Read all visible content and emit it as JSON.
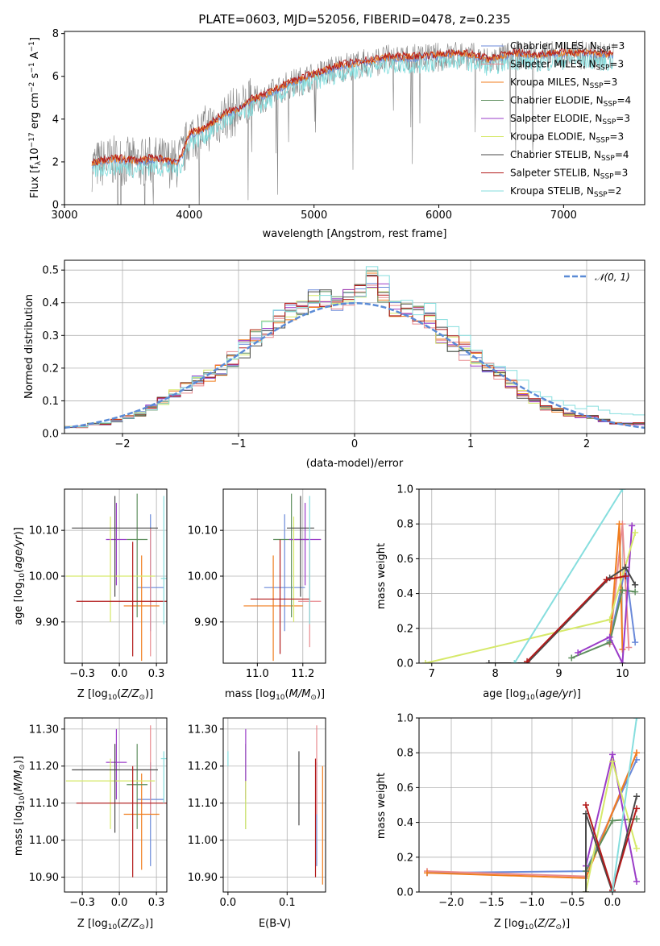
{
  "colors": {
    "chabrier_miles": "#6a89d9",
    "salpeter_miles": "#e88a8f",
    "kroupa_miles": "#f07d1e",
    "chabrier_elodie": "#5e8f5e",
    "salpeter_elodie": "#9a3cc8",
    "kroupa_elodie": "#d6e96a",
    "chabrier_stelib": "#4a4a4a",
    "salpeter_stelib": "#b31b1b",
    "kroupa_stelib": "#86dede",
    "grey_spectrum": "#808080"
  },
  "legend": [
    {
      "key": "chabrier_miles",
      "label": "Chabrier MILES, N",
      "sub": "SSP",
      "tail": "=3"
    },
    {
      "key": "salpeter_miles",
      "label": "Salpeter MILES, N",
      "sub": "SSP",
      "tail": "=3"
    },
    {
      "key": "kroupa_miles",
      "label": "Kroupa MILES, N",
      "sub": "SSP",
      "tail": "=3"
    },
    {
      "key": "chabrier_elodie",
      "label": "Chabrier ELODIE, N",
      "sub": "SSP",
      "tail": "=4"
    },
    {
      "key": "salpeter_elodie",
      "label": "Salpeter ELODIE, N",
      "sub": "SSP",
      "tail": "=3"
    },
    {
      "key": "kroupa_elodie",
      "label": "Kroupa ELODIE, N",
      "sub": "SSP",
      "tail": "=3"
    },
    {
      "key": "chabrier_stelib",
      "label": "Chabrier STELIB, N",
      "sub": "SSP",
      "tail": "=4"
    },
    {
      "key": "salpeter_stelib",
      "label": "Salpeter STELIB, N",
      "sub": "SSP",
      "tail": "=3"
    },
    {
      "key": "kroupa_stelib",
      "label": "Kroupa STELIB, N",
      "sub": "SSP",
      "tail": "=2"
    }
  ],
  "chart_data": [
    {
      "id": "spectrum",
      "type": "line",
      "title": "PLATE=0603, MJD=52056, FIBERID=0478, z=0.235",
      "xlabel": "wavelength [Angstrom, rest frame]",
      "ylabel": "Flux [fλ 10⁻¹⁷ erg cm⁻² s⁻¹ A⁻¹]",
      "xlim": [
        3000,
        7650
      ],
      "ylim": [
        0,
        8.1
      ],
      "xticks": [
        3000,
        4000,
        5000,
        6000,
        7000
      ],
      "yticks": [
        0,
        2,
        4,
        6,
        8
      ],
      "model_curve": {
        "x": [
          3220,
          3300,
          3400,
          3500,
          3600,
          3700,
          3800,
          3900,
          3950,
          4000,
          4100,
          4200,
          4300,
          4400,
          4500,
          4600,
          4700,
          4800,
          4900,
          5000,
          5200,
          5400,
          5600,
          5800,
          6000,
          6200,
          6400,
          6600,
          6800,
          7000,
          7200,
          7400
        ],
        "y": [
          1.8,
          1.95,
          2.05,
          2.0,
          1.95,
          2.05,
          2.0,
          1.9,
          2.3,
          3.2,
          3.4,
          3.8,
          4.2,
          4.4,
          4.8,
          5.0,
          5.3,
          5.6,
          5.8,
          6.0,
          6.4,
          6.6,
          6.8,
          6.8,
          6.9,
          7.0,
          6.7,
          7.0,
          6.9,
          7.0,
          7.0,
          6.9
        ]
      }
    },
    {
      "id": "residuals",
      "type": "line",
      "xlabel": "(data-model)/error",
      "ylabel": "Normed distribution",
      "xlim": [
        -2.5,
        2.5
      ],
      "ylim": [
        0,
        0.53
      ],
      "xticks": [
        -2,
        -1,
        0,
        1,
        2
      ],
      "yticks": [
        0,
        0.1,
        0.2,
        0.3,
        0.4,
        0.5
      ],
      "reference": {
        "label": "N(0,1)",
        "mean": 0,
        "sigma": 1,
        "color": "#5b8bd6"
      },
      "histogram": {
        "bin_width": 0.1,
        "shape": [
          0.02,
          0.02,
          0.03,
          0.03,
          0.04,
          0.05,
          0.06,
          0.08,
          0.1,
          0.12,
          0.14,
          0.16,
          0.18,
          0.2,
          0.23,
          0.26,
          0.29,
          0.32,
          0.35,
          0.37,
          0.39,
          0.41,
          0.41,
          0.4,
          0.42,
          0.44,
          0.47,
          0.43,
          0.38,
          0.37,
          0.36,
          0.34,
          0.3,
          0.27,
          0.25,
          0.23,
          0.2,
          0.18,
          0.15,
          0.12,
          0.1,
          0.08,
          0.07,
          0.06,
          0.05,
          0.05,
          0.04,
          0.03,
          0.03,
          0.03
        ]
      }
    },
    {
      "id": "age_vs_Z",
      "type": "scatter",
      "xlabel": "Z [log10(Z/Z⊙)]",
      "ylabel": "age  [log10(age/yr)]",
      "xlim": [
        -0.37,
        0.32
      ],
      "ylim": [
        9.81,
        10.19
      ],
      "xticks": [
        -0.25,
        0.0,
        0.25
      ],
      "yticks": [
        9.9,
        10.0,
        10.1
      ],
      "points": [
        {
          "key": "chabrier_miles",
          "x": 0.21,
          "y": 9.975,
          "xerr": 0.09,
          "yerr": [
            0.095,
            0.16
          ]
        },
        {
          "key": "salpeter_miles",
          "x": 0.21,
          "y": 10.005,
          "xerr": 0.0,
          "yerr": [
            0.18,
            0.1
          ]
        },
        {
          "key": "kroupa_miles",
          "x": 0.15,
          "y": 9.935,
          "xerr": 0.12,
          "yerr": [
            0.12,
            0.11
          ]
        },
        {
          "key": "chabrier_elodie",
          "x": 0.12,
          "y": 10.08,
          "xerr": 0.07,
          "yerr": [
            0.17,
            0.1
          ]
        },
        {
          "key": "salpeter_elodie",
          "x": -0.02,
          "y": 10.08,
          "xerr": 0.07,
          "yerr": [
            0.1,
            0.08
          ]
        },
        {
          "key": "kroupa_elodie",
          "x": -0.06,
          "y": 10.0,
          "xerr": 0.3,
          "yerr": [
            0.1,
            0.13
          ]
        },
        {
          "key": "chabrier_stelib",
          "x": -0.03,
          "y": 10.105,
          "xerr": 0.29,
          "yerr": [
            0.15,
            0.07
          ]
        },
        {
          "key": "salpeter_stelib",
          "x": 0.09,
          "y": 9.945,
          "xerr": 0.38,
          "yerr": [
            0.12,
            0.13
          ]
        },
        {
          "key": "kroupa_stelib",
          "x": 0.3,
          "y": 9.995,
          "xerr": 0.02,
          "yerr": [
            0.1,
            0.18
          ]
        }
      ]
    },
    {
      "id": "age_vs_mass",
      "type": "scatter",
      "xlabel": "mass [log10(M/M⊙)]",
      "ylabel": "",
      "xlim": [
        10.85,
        11.3
      ],
      "ylim": [
        9.81,
        10.19
      ],
      "xticks": [
        11.0,
        11.2
      ],
      "yticks": [
        9.9,
        10.0,
        10.1
      ],
      "points": [
        {
          "key": "chabrier_miles",
          "x": 11.12,
          "y": 9.975,
          "xerr": 0.09,
          "yerr": [
            0.095,
            0.16
          ]
        },
        {
          "key": "salpeter_miles",
          "x": 11.23,
          "y": 9.945,
          "xerr": 0.05,
          "yerr": [
            0.1,
            0.13
          ]
        },
        {
          "key": "kroupa_miles",
          "x": 11.07,
          "y": 9.935,
          "xerr": 0.13,
          "yerr": [
            0.12,
            0.11
          ]
        },
        {
          "key": "chabrier_elodie",
          "x": 11.15,
          "y": 10.08,
          "xerr": 0.08,
          "yerr": [
            0.17,
            0.1
          ]
        },
        {
          "key": "salpeter_elodie",
          "x": 11.21,
          "y": 10.08,
          "xerr": 0.07,
          "yerr": [
            0.1,
            0.08
          ]
        },
        {
          "key": "kroupa_elodie",
          "x": 11.16,
          "y": 10.0,
          "xerr": 0.0,
          "yerr": [
            0.1,
            0.13
          ]
        },
        {
          "key": "chabrier_stelib",
          "x": 11.19,
          "y": 10.105,
          "xerr": 0.06,
          "yerr": [
            0.15,
            0.07
          ]
        },
        {
          "key": "salpeter_stelib",
          "x": 11.1,
          "y": 9.95,
          "xerr": 0.13,
          "yerr": [
            0.12,
            0.13
          ]
        },
        {
          "key": "kroupa_stelib",
          "x": 11.23,
          "y": 9.995,
          "xerr": 0.0,
          "yerr": [
            0.1,
            0.18
          ]
        }
      ]
    },
    {
      "id": "weights_vs_age",
      "type": "line",
      "xlabel": "age  [log10(age/yr)]",
      "ylabel": "mass weight",
      "xlim": [
        6.8,
        10.35
      ],
      "ylim": [
        0,
        1
      ],
      "xticks": [
        7,
        8,
        9,
        10
      ],
      "yticks": [
        0,
        0.2,
        0.4,
        0.6,
        0.8,
        1.0
      ],
      "series": [
        {
          "key": "chabrier_miles",
          "x": [
            9.8,
            10.05,
            10.2
          ],
          "y": [
            0.13,
            0.55,
            0.12
          ]
        },
        {
          "key": "salpeter_miles",
          "x": [
            9.8,
            10.0,
            10.1
          ],
          "y": [
            0.11,
            0.8,
            0.09
          ]
        },
        {
          "key": "kroupa_miles",
          "x": [
            9.8,
            9.95,
            10.0
          ],
          "y": [
            0.12,
            0.8,
            0.08
          ]
        },
        {
          "key": "chabrier_elodie",
          "x": [
            9.2,
            9.8,
            10.0,
            10.2
          ],
          "y": [
            0.03,
            0.12,
            0.42,
            0.41
          ]
        },
        {
          "key": "salpeter_elodie",
          "x": [
            9.3,
            9.8,
            10.0,
            10.15
          ],
          "y": [
            0.06,
            0.15,
            0.0,
            0.79
          ]
        },
        {
          "key": "kroupa_elodie",
          "x": [
            6.9,
            9.8,
            10.2
          ],
          "y": [
            0.0,
            0.25,
            0.75
          ]
        },
        {
          "key": "chabrier_stelib",
          "x": [
            7.9,
            8.5,
            9.8,
            10.05,
            10.2
          ],
          "y": [
            0.0,
            0.0,
            0.49,
            0.55,
            0.45
          ]
        },
        {
          "key": "salpeter_stelib",
          "x": [
            8.5,
            9.75,
            10.05
          ],
          "y": [
            0.01,
            0.48,
            0.5
          ]
        },
        {
          "key": "kroupa_stelib",
          "x": [
            8.3,
            10.0
          ],
          "y": [
            0.0,
            1.0
          ]
        }
      ]
    },
    {
      "id": "mass_vs_Z",
      "type": "scatter",
      "xlabel": "Z [log10(Z/Z⊙)]",
      "ylabel": "mass [log10(M/M⊙)]",
      "xlim": [
        -0.37,
        0.32
      ],
      "ylim": [
        10.86,
        11.33
      ],
      "xticks": [
        -0.25,
        0.0,
        0.25
      ],
      "yticks": [
        10.9,
        11.0,
        11.1,
        11.2,
        11.3
      ],
      "points": [
        {
          "key": "chabrier_miles",
          "x": 0.21,
          "y": 11.11,
          "xerr": 0.09,
          "yerr": [
            0.18,
            0.1
          ]
        },
        {
          "key": "salpeter_miles",
          "x": 0.21,
          "y": 11.22,
          "xerr": 0.0,
          "yerr": [
            0.15,
            0.09
          ]
        },
        {
          "key": "kroupa_miles",
          "x": 0.15,
          "y": 11.07,
          "xerr": 0.12,
          "yerr": [
            0.15,
            0.11
          ]
        },
        {
          "key": "chabrier_elodie",
          "x": 0.12,
          "y": 11.15,
          "xerr": 0.07,
          "yerr": [
            0.12,
            0.11
          ]
        },
        {
          "key": "salpeter_elodie",
          "x": -0.02,
          "y": 11.21,
          "xerr": 0.07,
          "yerr": [
            0.1,
            0.09
          ]
        },
        {
          "key": "kroupa_elodie",
          "x": -0.06,
          "y": 11.16,
          "xerr": 0.3,
          "yerr": [
            0.13,
            0.06
          ]
        },
        {
          "key": "chabrier_stelib",
          "x": -0.03,
          "y": 11.19,
          "xerr": 0.29,
          "yerr": [
            0.17,
            0.07
          ]
        },
        {
          "key": "salpeter_stelib",
          "x": 0.09,
          "y": 11.1,
          "xerr": 0.38,
          "yerr": [
            0.2,
            0.1
          ]
        },
        {
          "key": "kroupa_stelib",
          "x": 0.3,
          "y": 11.22,
          "xerr": 0.02,
          "yerr": [
            0.12,
            0.02
          ]
        }
      ]
    },
    {
      "id": "mass_vs_EBV",
      "type": "scatter",
      "xlabel": "E(B-V)",
      "ylabel": "",
      "xlim": [
        -0.008,
        0.165
      ],
      "ylim": [
        10.86,
        11.33
      ],
      "xticks": [
        0.0,
        0.1
      ],
      "yticks": [
        10.9,
        11.0,
        11.1,
        11.2,
        11.3
      ],
      "points": [
        {
          "key": "chabrier_miles",
          "x": 0.15,
          "y": 11.11,
          "xerr": 0,
          "yerr": [
            0.18,
            0.1
          ]
        },
        {
          "key": "salpeter_miles",
          "x": 0.15,
          "y": 11.22,
          "xerr": 0,
          "yerr": [
            0.15,
            0.09
          ]
        },
        {
          "key": "kroupa_miles",
          "x": 0.16,
          "y": 11.04,
          "xerr": 0,
          "yerr": [
            0.16,
            0.16
          ]
        },
        {
          "key": "chabrier_elodie",
          "x": 0.03,
          "y": 11.15,
          "xerr": 0,
          "yerr": [
            0.12,
            0.11
          ]
        },
        {
          "key": "salpeter_elodie",
          "x": 0.03,
          "y": 11.21,
          "xerr": 0,
          "yerr": [
            0.1,
            0.09
          ]
        },
        {
          "key": "kroupa_elodie",
          "x": 0.03,
          "y": 11.1,
          "xerr": 0,
          "yerr": [
            0.07,
            0.06
          ]
        },
        {
          "key": "chabrier_stelib",
          "x": 0.12,
          "y": 11.14,
          "xerr": 0,
          "yerr": [
            0.1,
            0.1
          ]
        },
        {
          "key": "salpeter_stelib",
          "x": 0.148,
          "y": 11.1,
          "xerr": 0,
          "yerr": [
            0.2,
            0.12
          ]
        },
        {
          "key": "kroupa_stelib",
          "x": 0.0,
          "y": 11.22,
          "xerr": 0,
          "yerr": [
            0.02,
            0.02
          ]
        }
      ]
    },
    {
      "id": "weights_vs_Z",
      "type": "line",
      "xlabel": "Z [log10(Z/Z⊙)]",
      "ylabel": "mass weight",
      "xlim": [
        -2.4,
        0.4
      ],
      "ylim": [
        0,
        1
      ],
      "xticks": [
        -2.0,
        -1.5,
        -1.0,
        -0.5,
        0.0
      ],
      "yticks": [
        0,
        0.2,
        0.4,
        0.6,
        0.8,
        1.0
      ],
      "series": [
        {
          "key": "chabrier_miles",
          "x": [
            -2.3,
            -0.33,
            0.3
          ],
          "y": [
            0.11,
            0.12,
            0.76
          ]
        },
        {
          "key": "salpeter_miles",
          "x": [
            -2.3,
            -0.33,
            0.3
          ],
          "y": [
            0.12,
            0.09,
            0.8
          ]
        },
        {
          "key": "kroupa_miles",
          "x": [
            -2.3,
            -0.33,
            0.3
          ],
          "y": [
            0.11,
            0.08,
            0.8
          ]
        },
        {
          "key": "chabrier_elodie",
          "x": [
            -0.33,
            0.0,
            0.3
          ],
          "y": [
            0.12,
            0.41,
            0.42
          ]
        },
        {
          "key": "salpeter_elodie",
          "x": [
            -0.33,
            0.0,
            0.3
          ],
          "y": [
            0.15,
            0.79,
            0.06
          ]
        },
        {
          "key": "kroupa_elodie",
          "x": [
            -0.33,
            0.0,
            0.3
          ],
          "y": [
            0.0,
            0.75,
            0.25
          ]
        },
        {
          "key": "chabrier_stelib",
          "x": [
            -0.33,
            -0.33,
            0.0,
            0.3
          ],
          "y": [
            0.0,
            0.45,
            0.0,
            0.55
          ]
        },
        {
          "key": "salpeter_stelib",
          "x": [
            -0.33,
            0.0,
            0.3
          ],
          "y": [
            0.5,
            0.01,
            0.48
          ]
        },
        {
          "key": "kroupa_stelib",
          "x": [
            0.0,
            0.3
          ],
          "y": [
            0.0,
            1.0
          ]
        }
      ]
    }
  ]
}
